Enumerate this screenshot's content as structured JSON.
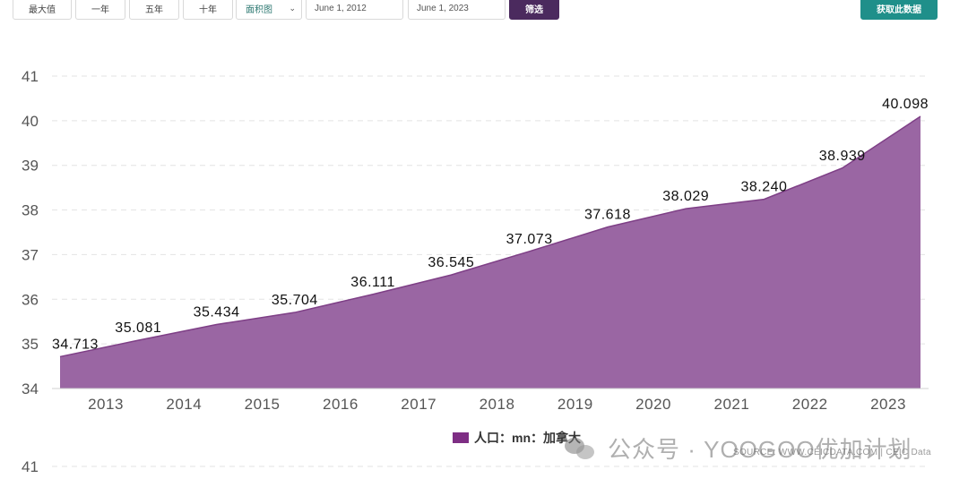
{
  "toolbar": {
    "max_label": "最大值",
    "one_year_label": "一年",
    "five_year_label": "五年",
    "ten_year_label": "十年",
    "chart_type_value": "面积图",
    "start_date": "June 1, 2012",
    "end_date": "June 1, 2023",
    "filter_label": "筛选",
    "fetch_label": "获取此数据"
  },
  "legend": {
    "label": "人口：mn：加拿大"
  },
  "source": "SOURCE: WWW.CEICDATA.COM | CEIC Data",
  "watermark": "公众号 · YOOGOO优加计划",
  "second_chart_tick": "41",
  "colors": {
    "area_fill": "#9a66a3",
    "area_line": "#7e3f86",
    "legend": "#7e2e84",
    "filter_button": "#4b2a5e",
    "fetch_button": "#1f8f8a"
  },
  "chart_data": {
    "type": "area",
    "x": [
      "2012",
      "2013",
      "2014",
      "2015",
      "2016",
      "2017",
      "2018",
      "2019",
      "2020",
      "2021",
      "2022",
      "2023"
    ],
    "x_tick_labels": [
      "2013",
      "2014",
      "2015",
      "2016",
      "2017",
      "2018",
      "2019",
      "2020",
      "2021",
      "2022",
      "2023"
    ],
    "series": [
      {
        "name": "人口：mn：加拿大",
        "values": [
          34.713,
          35.081,
          35.434,
          35.704,
          36.111,
          36.545,
          37.073,
          37.618,
          38.029,
          38.24,
          38.939,
          40.098
        ],
        "data_labels": [
          "34.713",
          "35.081",
          "35.434",
          "35.704",
          "36.111",
          "36.545",
          "37.073",
          "37.618",
          "38.029",
          "38.240",
          "38.939",
          "40.098"
        ]
      }
    ],
    "y_ticks": [
      34,
      35,
      36,
      37,
      38,
      39,
      40,
      41
    ],
    "ylim": [
      34,
      41
    ],
    "grid": true,
    "legend_position": "bottom-center"
  }
}
